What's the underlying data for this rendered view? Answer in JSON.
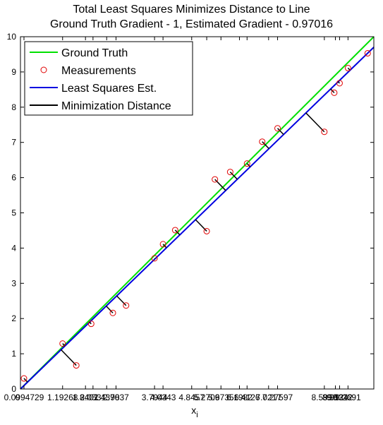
{
  "chart_data": {
    "type": "scatter",
    "title": "Total Least Squares Minimizes Distance to Line",
    "subtitle": "Ground Truth Gradient - 1, Estimated Gradient - 0.97016",
    "xlabel": "x",
    "xlabel_subscript": "i",
    "ylabel": "",
    "xlim": [
      0,
      10
    ],
    "ylim": [
      0,
      10
    ],
    "grid": false,
    "legend_position": "top-left",
    "ground_truth_slope": 1,
    "estimated_slope": 0.97016,
    "x_tick_labels": [
      "0",
      "0.09947291.1926",
      "1.8401",
      "2.0531",
      "2.4398",
      "2.7037",
      "3.7944",
      "4.0343",
      "4.8457",
      "5.2709",
      "5.6735",
      "6.1982",
      "6.4126",
      "7.0217",
      "7.27597",
      "8.5998",
      "8.9124",
      "9.0312",
      "9.2691"
    ],
    "x_tick_label_strings": [
      "0.0994729",
      "1.19268",
      "1.8401",
      "2.0531",
      "2.4398",
      "2.7037",
      "3.7944",
      "4.0343",
      "4.8457",
      "5.2709",
      "5.6735",
      "6.1982",
      "6.4126",
      "7.0217",
      "7.27597",
      "8.5998",
      "8.9124",
      "9.0312",
      "9.2691"
    ],
    "y_ticks": [
      0,
      1,
      2,
      3,
      4,
      5,
      6,
      7,
      8,
      9,
      10
    ],
    "series": [
      {
        "name": "Ground Truth",
        "kind": "line",
        "color": "#00e000",
        "x": [
          0,
          10
        ],
        "y": [
          0,
          10
        ]
      },
      {
        "name": "Measurements",
        "kind": "markers",
        "color": "#e00000",
        "x": [
          0.0995,
          1.1927,
          1.5802,
          2.0019,
          2.6149,
          2.9893,
          3.7944,
          4.0343,
          4.3787,
          5.2709,
          5.5024,
          5.9353,
          6.4126,
          6.8415,
          7.276,
          8.599,
          8.88,
          9.0312,
          9.2691,
          9.8259
        ],
        "y": [
          0.3,
          1.29,
          0.67,
          1.85,
          2.16,
          2.37,
          3.71,
          4.11,
          4.51,
          4.48,
          5.95,
          6.16,
          6.4,
          7.02,
          7.4,
          7.3,
          8.41,
          8.68,
          9.11,
          9.53
        ]
      },
      {
        "name": "Least Squares Est.",
        "kind": "line",
        "color": "#0000e0",
        "x": [
          0,
          10
        ],
        "y": [
          0,
          9.7016
        ]
      },
      {
        "name": "Minimization Distance",
        "kind": "segments",
        "color": "#000000"
      }
    ]
  }
}
